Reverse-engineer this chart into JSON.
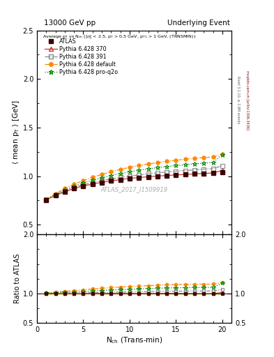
{
  "title_left": "13000 GeV pp",
  "title_right": "Underlying Event",
  "watermark": "ATLAS_2017_I1509919",
  "right_label_top": "Rivet 3.1.10, ≥ 2.8M events",
  "right_label_bottom": "mcplots.cern.ch [arXiv:1306.3436]",
  "xlabel": "N$_{\\rm ch}$ (Trans-min)",
  "ylabel_main": "$\\langle$ mean p$_{\\rm T}$ $\\rangle$ [GeV]",
  "ylabel_ratio": "Ratio to ATLAS",
  "ylim_main": [
    0.4,
    2.5
  ],
  "ylim_ratio": [
    0.5,
    2.0
  ],
  "yticks_main": [
    0.5,
    1.0,
    1.5,
    2.0,
    2.5
  ],
  "yticks_ratio": [
    0.5,
    1.0,
    2.0
  ],
  "xlim": [
    0,
    21
  ],
  "xticks": [
    0,
    5,
    10,
    15,
    20
  ],
  "x_data": [
    1,
    2,
    3,
    4,
    5,
    6,
    7,
    8,
    9,
    10,
    11,
    12,
    13,
    14,
    15,
    16,
    17,
    18,
    19,
    20
  ],
  "atlas_y": [
    0.755,
    0.8,
    0.84,
    0.873,
    0.898,
    0.918,
    0.935,
    0.95,
    0.963,
    0.975,
    0.984,
    0.992,
    0.998,
    1.003,
    1.01,
    1.016,
    1.022,
    1.028,
    1.033,
    1.038
  ],
  "atlas_yerr": [
    0.012,
    0.009,
    0.007,
    0.006,
    0.006,
    0.005,
    0.005,
    0.005,
    0.005,
    0.005,
    0.005,
    0.005,
    0.005,
    0.005,
    0.005,
    0.005,
    0.005,
    0.005,
    0.005,
    0.008
  ],
  "py370_y": [
    0.757,
    0.8,
    0.838,
    0.872,
    0.898,
    0.918,
    0.936,
    0.951,
    0.964,
    0.976,
    0.985,
    0.993,
    1.0,
    1.006,
    1.012,
    1.017,
    1.022,
    1.027,
    1.032,
    1.058
  ],
  "py391_y": [
    0.76,
    0.805,
    0.847,
    0.882,
    0.91,
    0.933,
    0.953,
    0.971,
    0.986,
    1.0,
    1.012,
    1.023,
    1.033,
    1.042,
    1.05,
    1.057,
    1.064,
    1.071,
    1.077,
    1.107
  ],
  "pydef_y": [
    0.762,
    0.82,
    0.872,
    0.916,
    0.954,
    0.988,
    1.018,
    1.045,
    1.069,
    1.09,
    1.108,
    1.124,
    1.139,
    1.152,
    1.163,
    1.173,
    1.182,
    1.19,
    1.197,
    1.228
  ],
  "pyq2o_y": [
    0.76,
    0.812,
    0.857,
    0.896,
    0.929,
    0.958,
    0.983,
    1.006,
    1.026,
    1.044,
    1.06,
    1.074,
    1.087,
    1.098,
    1.108,
    1.117,
    1.125,
    1.133,
    1.14,
    1.22
  ],
  "atlas_color": "#3d0000",
  "py370_color": "#cc3333",
  "py391_color": "#888888",
  "pydef_color": "#ff8800",
  "pyq2o_color": "#008800",
  "ratio_band_color_yellow": "#ffff99",
  "ratio_band_color_green": "#99ff99"
}
